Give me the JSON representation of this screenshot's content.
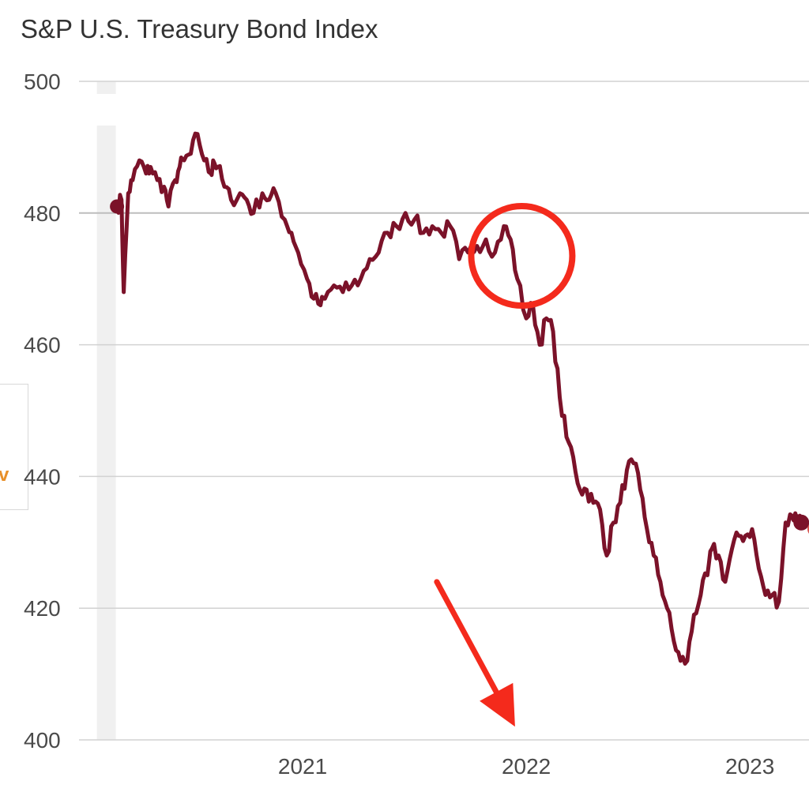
{
  "chart_data": {
    "type": "line",
    "title": "S&P U.S. Treasury Bond Index",
    "xlabel": "",
    "ylabel": "",
    "ylim": [
      400,
      500
    ],
    "y_ticks": [
      400,
      420,
      440,
      460,
      480,
      500
    ],
    "x_ticks": [
      "2021",
      "2022",
      "2023"
    ],
    "grid": "horizontal",
    "series": [
      {
        "color": "#7b1229",
        "x": [
          2020.17,
          2020.19,
          2020.2,
          2020.22,
          2020.24,
          2020.27,
          2020.3,
          2020.32,
          2020.35,
          2020.38,
          2020.4,
          2020.43,
          2020.45,
          2020.47,
          2020.5,
          2020.53,
          2020.56,
          2020.59,
          2020.6,
          2020.62,
          2020.65,
          2020.68,
          2020.72,
          2020.75,
          2020.78,
          2020.82,
          2020.85,
          2020.88,
          2020.92,
          2020.95,
          2020.98,
          2021.02,
          2021.05,
          2021.08,
          2021.1,
          2021.14,
          2021.18,
          2021.22,
          2021.26,
          2021.3,
          2021.34,
          2021.38,
          2021.42,
          2021.46,
          2021.5,
          2021.54,
          2021.58,
          2021.62,
          2021.66,
          2021.7,
          2021.74,
          2021.78,
          2021.82,
          2021.86,
          2021.9,
          2021.93,
          2021.96,
          2022.0,
          2022.03,
          2022.06,
          2022.09,
          2022.12,
          2022.15,
          2022.18,
          2022.21,
          2022.24,
          2022.27,
          2022.3,
          2022.33,
          2022.36,
          2022.39,
          2022.42,
          2022.45,
          2022.48,
          2022.51,
          2022.54,
          2022.57,
          2022.6,
          2022.63,
          2022.66,
          2022.69,
          2022.72,
          2022.75,
          2022.78,
          2022.81,
          2022.83,
          2022.86,
          2022.89,
          2022.92,
          2022.95,
          2022.98,
          2023.01,
          2023.04,
          2023.07,
          2023.1,
          2023.13,
          2023.16,
          2023.19,
          2023.2,
          2023.21,
          2023.23
        ],
        "values": [
          481,
          482,
          468,
          483,
          485,
          488,
          486,
          487,
          485,
          484,
          481,
          485,
          487,
          488,
          489,
          492,
          488,
          486,
          488,
          487,
          484,
          482,
          483,
          482,
          480,
          483,
          482,
          483,
          479,
          477,
          474,
          470,
          467,
          466,
          467,
          469,
          468,
          469,
          470,
          473,
          474,
          477,
          478,
          480,
          479,
          477,
          478,
          477,
          478,
          473,
          474,
          475,
          476,
          474,
          478,
          476,
          470,
          464,
          466,
          460,
          464,
          462,
          452,
          446,
          443,
          438,
          438,
          436,
          435,
          428,
          433,
          436,
          441,
          442,
          438,
          432,
          428,
          424,
          420,
          415,
          412,
          412,
          419,
          422,
          425,
          429,
          428,
          424,
          429,
          431,
          431,
          432,
          426,
          422,
          422,
          421,
          433,
          434,
          434,
          434,
          433
        ]
      }
    ],
    "annotations": [
      {
        "type": "circle",
        "x": 2021.98,
        "y": 473.5
      },
      {
        "type": "arrow",
        "from_x": 2021.6,
        "from_y": 424,
        "to_x": 2021.95,
        "to_y": 402
      }
    ]
  },
  "side_panel": {
    "glyph": "v"
  }
}
